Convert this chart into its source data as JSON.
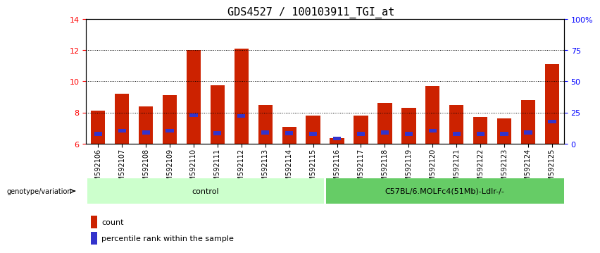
{
  "title": "GDS4527 / 100103911_TGI_at",
  "samples": [
    "GSM592106",
    "GSM592107",
    "GSM592108",
    "GSM592109",
    "GSM592110",
    "GSM592111",
    "GSM592112",
    "GSM592113",
    "GSM592114",
    "GSM592115",
    "GSM592116",
    "GSM592117",
    "GSM592118",
    "GSM592119",
    "GSM592120",
    "GSM592121",
    "GSM592122",
    "GSM592123",
    "GSM592124",
    "GSM592125"
  ],
  "count_values": [
    8.1,
    9.2,
    8.4,
    9.1,
    12.0,
    9.75,
    12.1,
    8.5,
    7.1,
    7.8,
    6.35,
    7.8,
    8.6,
    8.3,
    9.7,
    8.5,
    7.7,
    7.6,
    8.8,
    11.1
  ],
  "percentile_bottom": [
    6.5,
    6.7,
    6.6,
    6.7,
    7.7,
    6.55,
    7.65,
    6.6,
    6.55,
    6.5,
    6.2,
    6.5,
    6.6,
    6.5,
    6.7,
    6.5,
    6.5,
    6.5,
    6.6,
    7.3
  ],
  "percentile_height": [
    0.25,
    0.25,
    0.25,
    0.25,
    0.25,
    0.25,
    0.25,
    0.25,
    0.25,
    0.25,
    0.25,
    0.25,
    0.25,
    0.25,
    0.25,
    0.25,
    0.25,
    0.25,
    0.25,
    0.25
  ],
  "bar_bottom": 6.0,
  "ylim": [
    6.0,
    14.0
  ],
  "yticks": [
    6,
    8,
    10,
    12,
    14
  ],
  "right_yticks": [
    0,
    25,
    50,
    75,
    100
  ],
  "right_ytick_labels": [
    "0",
    "25",
    "50",
    "75",
    "100%"
  ],
  "bar_color": "#CC2200",
  "blue_color": "#3333CC",
  "n_control": 10,
  "n_treatment": 10,
  "control_label": "control",
  "treatment_label": "C57BL/6.MOLFc4(51Mb)-Ldlr-/-",
  "group_label": "genotype/variation",
  "legend_count": "count",
  "legend_percentile": "percentile rank within the sample",
  "control_bg": "#ccffcc",
  "treatment_bg": "#66cc66",
  "title_fontsize": 11,
  "tick_label_fontsize": 7,
  "bar_width": 0.6
}
